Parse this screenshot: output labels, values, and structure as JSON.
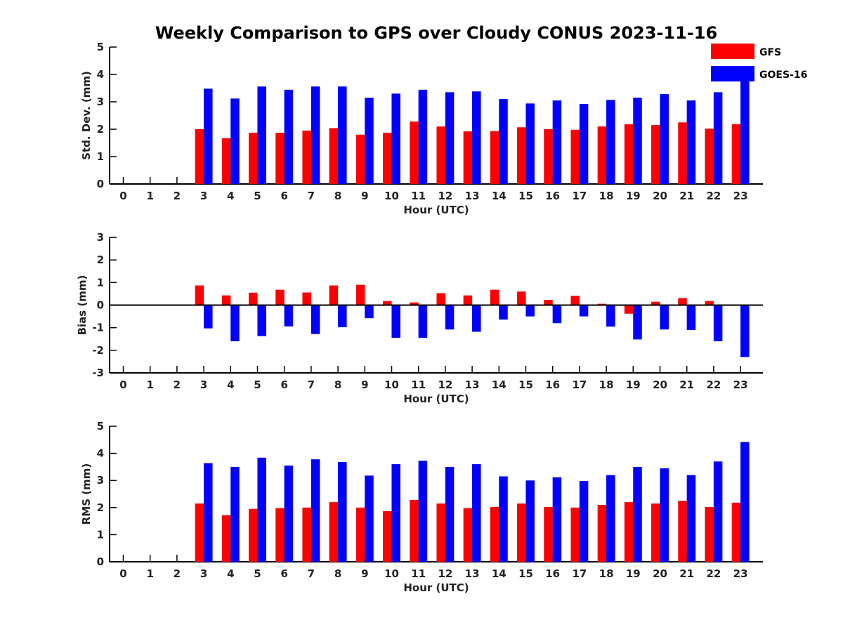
{
  "title": "Weekly Comparison to GPS over Cloudy CONUS 2023-11-16",
  "legend": {
    "placement": "top-right",
    "entries": [
      {
        "label": "GFS",
        "color": "#ff0000"
      },
      {
        "label": "GOES-16",
        "color": "#0000ff"
      }
    ]
  },
  "chart_data": [
    {
      "type": "bar",
      "title": "Weekly Comparison to GPS over Cloudy CONUS 2023-11-16",
      "xlabel": "Hour (UTC)",
      "ylabel": "Std. Dev. (mm)",
      "ylim": [
        0,
        5
      ],
      "yticks": [
        0,
        1,
        2,
        3,
        4,
        5
      ],
      "categories": [
        "0",
        "1",
        "2",
        "3",
        "4",
        "5",
        "6",
        "7",
        "8",
        "9",
        "10",
        "11",
        "12",
        "13",
        "14",
        "15",
        "16",
        "17",
        "18",
        "19",
        "20",
        "21",
        "22",
        "23"
      ],
      "grid": false,
      "series": [
        {
          "name": "GFS",
          "color": "#ff0000",
          "values": [
            0,
            0,
            0,
            2.0,
            1.67,
            1.87,
            1.87,
            1.95,
            2.04,
            1.8,
            1.87,
            2.28,
            2.1,
            1.92,
            1.93,
            2.07,
            2.0,
            1.98,
            2.1,
            2.18,
            2.15,
            2.25,
            2.02,
            2.18
          ]
        },
        {
          "name": "GOES-16",
          "color": "#0000ff",
          "values": [
            0,
            0,
            0,
            3.48,
            3.12,
            3.56,
            3.44,
            3.56,
            3.56,
            3.15,
            3.3,
            3.44,
            3.35,
            3.38,
            3.1,
            2.94,
            3.05,
            2.92,
            3.07,
            3.15,
            3.28,
            3.05,
            3.35,
            4.1
          ]
        }
      ]
    },
    {
      "type": "bar",
      "xlabel": "Hour (UTC)",
      "ylabel": "Bias (mm)",
      "ylim": [
        -3,
        3
      ],
      "yticks": [
        -3,
        -2,
        -1,
        0,
        1,
        2,
        3
      ],
      "categories": [
        "0",
        "1",
        "2",
        "3",
        "4",
        "5",
        "6",
        "7",
        "8",
        "9",
        "10",
        "11",
        "12",
        "13",
        "14",
        "15",
        "16",
        "17",
        "18",
        "19",
        "20",
        "21",
        "22",
        "23"
      ],
      "grid": false,
      "series": [
        {
          "name": "GFS",
          "color": "#ff0000",
          "values": [
            0,
            0,
            0,
            0.87,
            0.43,
            0.55,
            0.68,
            0.56,
            0.87,
            0.9,
            0.18,
            0.12,
            0.53,
            0.43,
            0.68,
            0.6,
            0.23,
            0.41,
            0.06,
            -0.38,
            0.15,
            0.31,
            0.18,
            0.03
          ]
        },
        {
          "name": "GOES-16",
          "color": "#0000ff",
          "values": [
            0,
            0,
            0,
            -1.03,
            -1.6,
            -1.37,
            -0.94,
            -1.28,
            -0.98,
            -0.58,
            -1.45,
            -1.45,
            -1.08,
            -1.18,
            -0.64,
            -0.5,
            -0.8,
            -0.5,
            -0.95,
            -1.52,
            -1.08,
            -1.1,
            -1.6,
            -2.3
          ]
        }
      ]
    },
    {
      "type": "bar",
      "xlabel": "Hour (UTC)",
      "ylabel": "RMS (mm)",
      "ylim": [
        0,
        5
      ],
      "yticks": [
        0,
        1,
        2,
        3,
        4,
        5
      ],
      "categories": [
        "0",
        "1",
        "2",
        "3",
        "4",
        "5",
        "6",
        "7",
        "8",
        "9",
        "10",
        "11",
        "12",
        "13",
        "14",
        "15",
        "16",
        "17",
        "18",
        "19",
        "20",
        "21",
        "22",
        "23"
      ],
      "grid": false,
      "series": [
        {
          "name": "GFS",
          "color": "#ff0000",
          "values": [
            0,
            0,
            0,
            2.15,
            1.72,
            1.95,
            1.98,
            2.0,
            2.2,
            2.0,
            1.87,
            2.28,
            2.15,
            1.98,
            2.02,
            2.15,
            2.02,
            2.0,
            2.1,
            2.2,
            2.15,
            2.25,
            2.02,
            2.18
          ]
        },
        {
          "name": "GOES-16",
          "color": "#0000ff",
          "values": [
            0,
            0,
            0,
            3.64,
            3.5,
            3.84,
            3.55,
            3.78,
            3.68,
            3.18,
            3.6,
            3.73,
            3.5,
            3.6,
            3.15,
            3.0,
            3.12,
            2.98,
            3.2,
            3.5,
            3.45,
            3.2,
            3.7,
            4.42
          ]
        }
      ]
    }
  ]
}
